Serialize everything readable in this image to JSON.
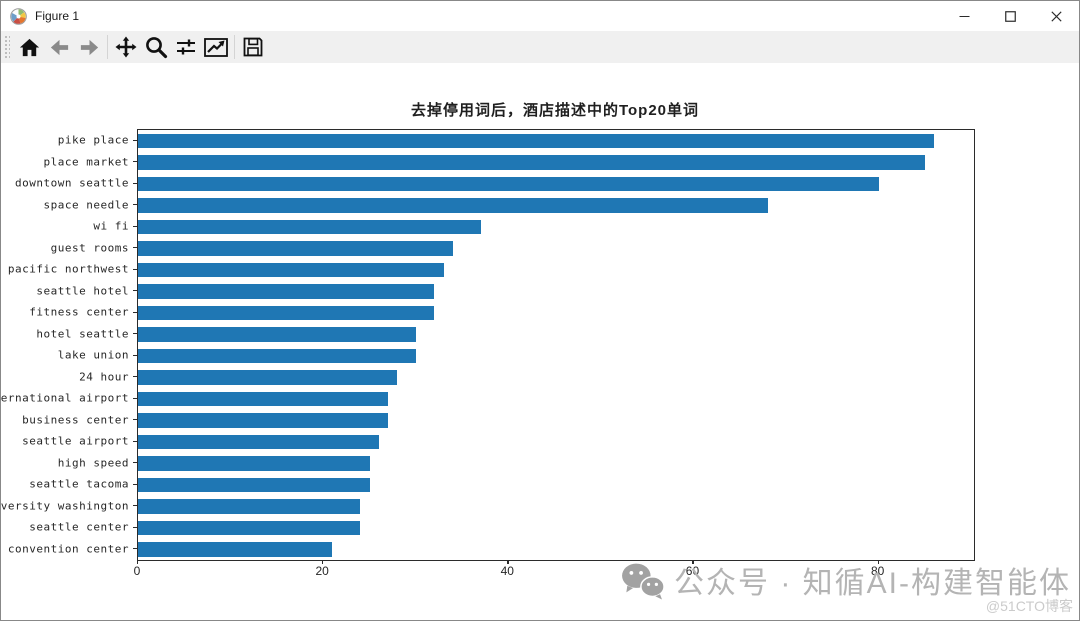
{
  "window": {
    "title": "Figure 1",
    "controls": [
      {
        "name": "minimize"
      },
      {
        "name": "maximize"
      },
      {
        "name": "close"
      }
    ]
  },
  "toolbar": {
    "buttons": [
      {
        "name": "home",
        "icon": "home-icon",
        "enabled": true
      },
      {
        "name": "back",
        "icon": "back-arrow-icon",
        "enabled": false
      },
      {
        "name": "forward",
        "icon": "forward-arrow-icon",
        "enabled": false
      },
      {
        "name": "pan",
        "icon": "pan-move-icon",
        "enabled": true
      },
      {
        "name": "zoom",
        "icon": "magnifier-icon",
        "enabled": true
      },
      {
        "name": "configure-subplots",
        "icon": "sliders-icon",
        "enabled": true
      },
      {
        "name": "edit-axes",
        "icon": "line-chart-icon",
        "enabled": true
      },
      {
        "name": "save",
        "icon": "save-floppy-icon",
        "enabled": true
      }
    ]
  },
  "chart_data": {
    "type": "bar",
    "orientation": "horizontal",
    "title": "去掉停用词后，酒店描述中的Top20单词",
    "categories": [
      "pike place",
      "place market",
      "downtown seattle",
      "space needle",
      "wi fi",
      "guest rooms",
      "pacific northwest",
      "seattle hotel",
      "fitness center",
      "hotel seattle",
      "lake union",
      "24 hour",
      "international airport",
      "business center",
      "seattle airport",
      "high speed",
      "seattle tacoma",
      "university washington",
      "seattle center",
      "convention center"
    ],
    "values": [
      86,
      85,
      80,
      68,
      37,
      34,
      33,
      32,
      32,
      30,
      30,
      28,
      27,
      27,
      26,
      25,
      25,
      24,
      24,
      21
    ],
    "xticks": [
      0,
      20,
      40,
      60,
      80
    ],
    "xlim": [
      0,
      90.3
    ],
    "xlabel": "",
    "ylabel": "",
    "bar_color": "#1f77b4",
    "grid": false,
    "legend": null
  },
  "watermark": {
    "icon": "wechat-icon",
    "text": "公众号 · 知循AI-构建智能体",
    "subtext": "@51CTO博客"
  }
}
